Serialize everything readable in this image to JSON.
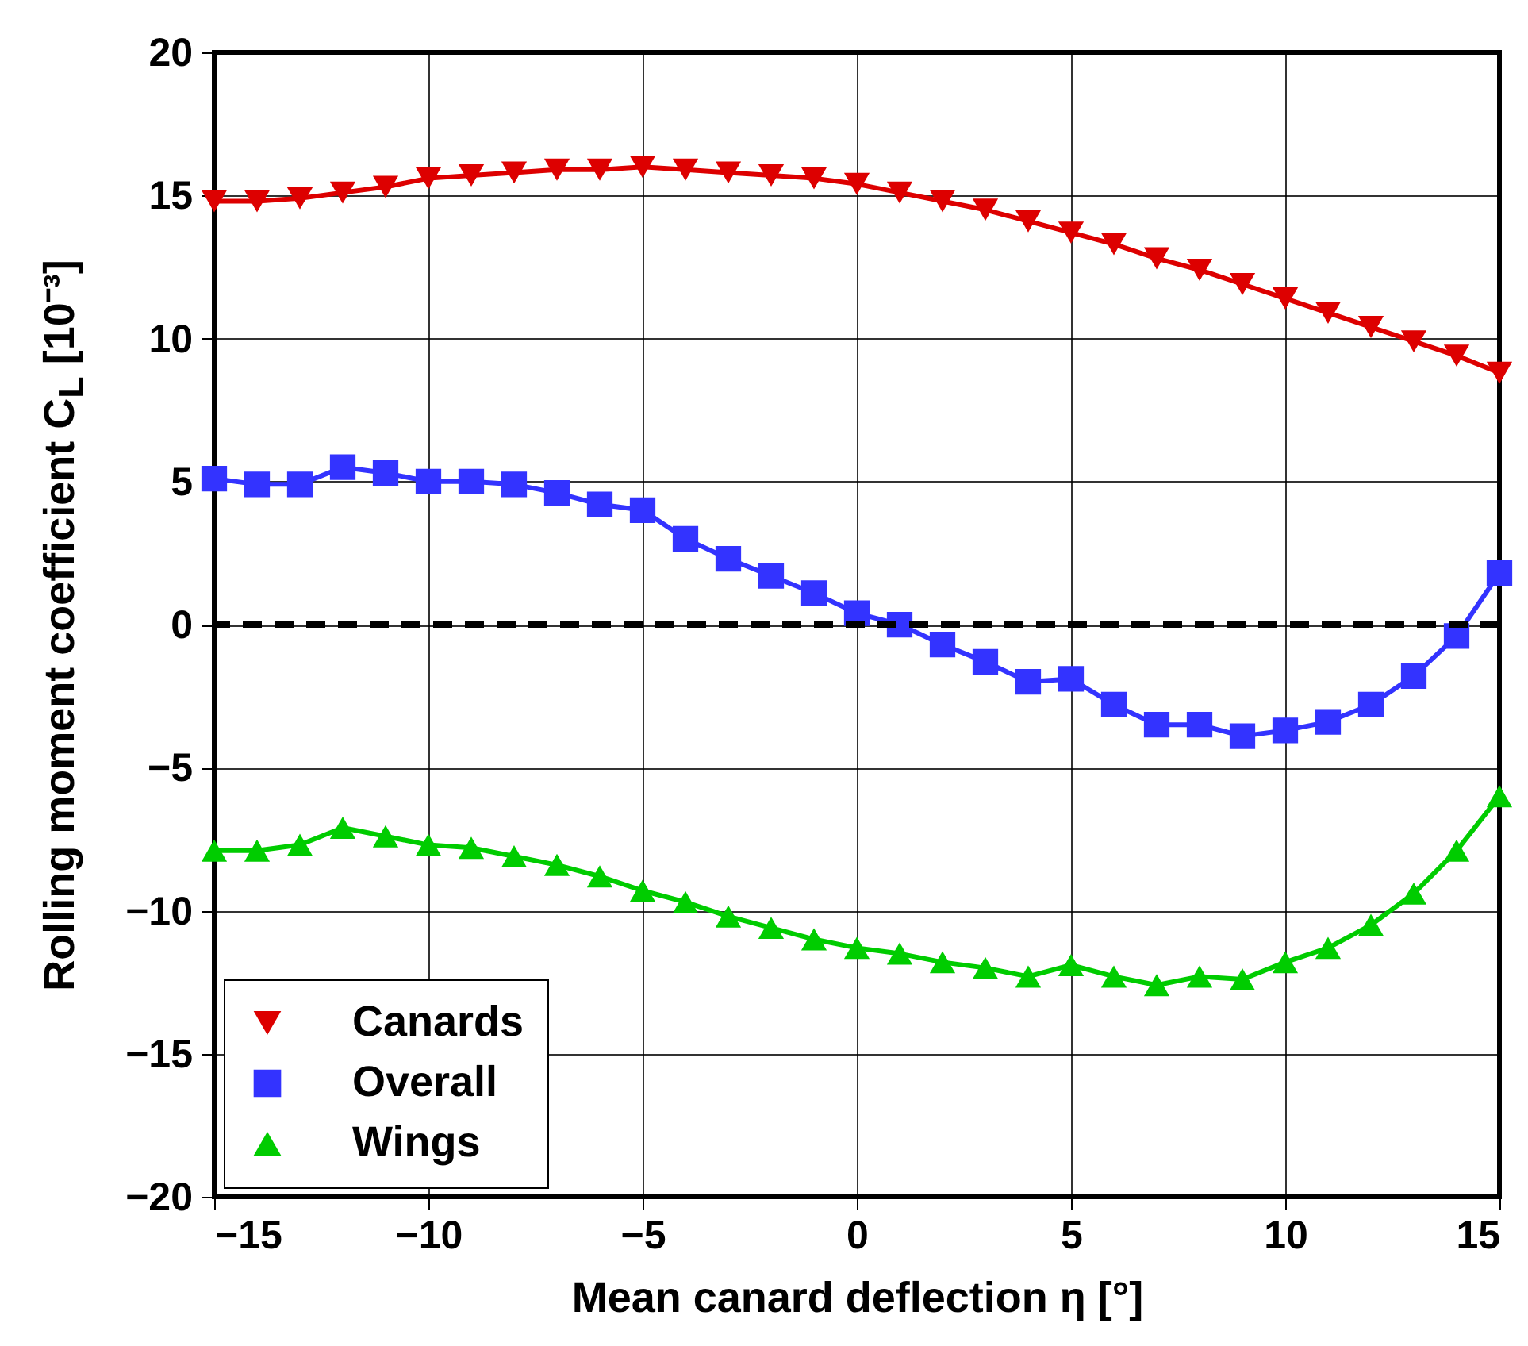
{
  "chart_data": {
    "type": "line",
    "xlabel": "Mean canard deflection η [°]",
    "ylabel": "Rolling moment coefficient C$_{L}$ [10⁻³]",
    "x": [
      -15,
      -14,
      -13,
      -12,
      -11,
      -10,
      -9,
      -8,
      -7,
      -6,
      -5,
      -4,
      -3,
      -2,
      -1,
      0,
      1,
      2,
      3,
      4,
      5,
      6,
      7,
      8,
      9,
      10,
      11,
      12,
      13,
      14,
      15
    ],
    "series": [
      {
        "name": "Canards",
        "color": "#dd0000",
        "marker": "triangle-down",
        "values": [
          14.8,
          14.8,
          14.9,
          15.1,
          15.3,
          15.6,
          15.7,
          15.8,
          15.9,
          15.9,
          16.0,
          15.9,
          15.8,
          15.7,
          15.6,
          15.4,
          15.1,
          14.8,
          14.5,
          14.1,
          13.7,
          13.3,
          12.8,
          12.4,
          11.9,
          11.4,
          10.9,
          10.4,
          9.9,
          9.4,
          8.8
        ]
      },
      {
        "name": "Overall",
        "color": "#3333ff",
        "marker": "square",
        "values": [
          5.1,
          4.9,
          4.9,
          5.5,
          5.3,
          5.0,
          5.0,
          4.9,
          4.6,
          4.2,
          4.0,
          3.0,
          2.3,
          1.7,
          1.1,
          0.4,
          0.0,
          -0.7,
          -1.3,
          -2.0,
          -1.9,
          -2.8,
          -3.5,
          -3.5,
          -3.9,
          -3.7,
          -3.4,
          -2.8,
          -1.8,
          -0.4,
          1.8
        ]
      },
      {
        "name": "Wings",
        "color": "#00cc00",
        "marker": "triangle",
        "values": [
          -7.9,
          -7.9,
          -7.7,
          -7.1,
          -7.4,
          -7.7,
          -7.8,
          -8.1,
          -8.4,
          -8.8,
          -9.3,
          -9.7,
          -10.2,
          -10.6,
          -11.0,
          -11.3,
          -11.5,
          -11.8,
          -12.0,
          -12.3,
          -11.9,
          -12.3,
          -12.6,
          -12.3,
          -12.4,
          -11.8,
          -11.3,
          -10.5,
          -9.4,
          -7.9,
          -6.0
        ]
      }
    ],
    "xlim": [
      -15,
      15
    ],
    "xticks": [
      -15,
      -10,
      -5,
      0,
      5,
      10,
      15
    ],
    "ylim": [
      -20,
      20
    ],
    "yticks": [
      -20,
      -15,
      -10,
      -5,
      0,
      5,
      10,
      15,
      20
    ],
    "ref_lines": [
      {
        "axis": "y",
        "value": 0,
        "color": "#000000",
        "line_style": "dashed"
      }
    ],
    "grid": true,
    "legend": "bottom left",
    "line_style": "solid"
  }
}
